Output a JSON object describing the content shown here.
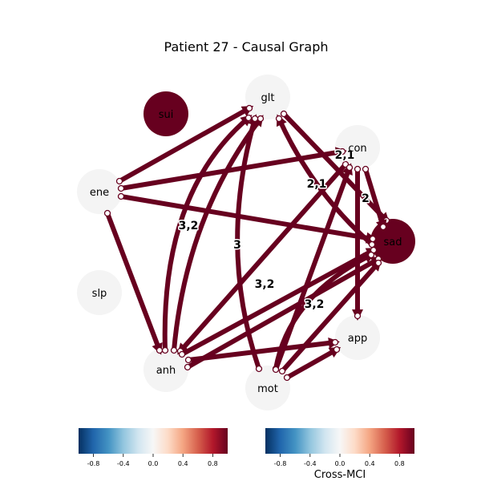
{
  "title": "Patient 27 - Causal Graph",
  "colors": {
    "edge": "#67001f",
    "node_neutral": "#f4f4f4",
    "node_strong": "#67001f",
    "marker_fill": "#ffffff"
  },
  "nodes": [
    {
      "id": "glt",
      "label": "glt",
      "value": 0.0
    },
    {
      "id": "sui",
      "label": "sui",
      "value": 1.0
    },
    {
      "id": "con",
      "label": "con",
      "value": 0.0
    },
    {
      "id": "ene",
      "label": "ene",
      "value": 0.0
    },
    {
      "id": "sad",
      "label": "sad",
      "value": 1.0
    },
    {
      "id": "slp",
      "label": "slp",
      "value": 0.0
    },
    {
      "id": "app",
      "label": "app",
      "value": 0.0
    },
    {
      "id": "anh",
      "label": "anh",
      "value": 0.0
    },
    {
      "id": "mot",
      "label": "mot",
      "value": 0.0
    }
  ],
  "edges": [
    {
      "from": "ene",
      "to": "glt",
      "label": ""
    },
    {
      "from": "ene",
      "to": "con",
      "label": ""
    },
    {
      "from": "ene",
      "to": "sad",
      "label": ""
    },
    {
      "from": "ene",
      "to": "anh",
      "label": ""
    },
    {
      "from": "anh",
      "to": "glt",
      "label": "3,2"
    },
    {
      "from": "anh",
      "to": "glt",
      "label": ""
    },
    {
      "from": "mot",
      "to": "glt",
      "label": "3"
    },
    {
      "from": "sad",
      "to": "glt",
      "label": "2,1"
    },
    {
      "from": "glt",
      "to": "sad",
      "label": ""
    },
    {
      "from": "con",
      "to": "sad",
      "label": "2"
    },
    {
      "from": "con",
      "to": "app",
      "label": ""
    },
    {
      "from": "con",
      "to": "anh",
      "label": "2,1"
    },
    {
      "from": "anh",
      "to": "sad",
      "label": "3,2"
    },
    {
      "from": "anh",
      "to": "sad",
      "label": ""
    },
    {
      "from": "anh",
      "to": "app",
      "label": ""
    },
    {
      "from": "mot",
      "to": "sad",
      "label": "3,2"
    },
    {
      "from": "mot",
      "to": "sad",
      "label": ""
    },
    {
      "from": "mot",
      "to": "con",
      "label": ""
    },
    {
      "from": "mot",
      "to": "app",
      "label": ""
    }
  ],
  "colorbars": [
    {
      "label": "",
      "range": [
        -1,
        1
      ],
      "ticks": [
        "-0.8",
        "-0.4",
        "0.0",
        "0.4",
        "0.8"
      ],
      "tick_values": [
        -0.8,
        -0.4,
        0.0,
        0.4,
        0.8
      ]
    },
    {
      "label": "Cross-MCI",
      "range": [
        -1,
        1
      ],
      "ticks": [
        "-0.8",
        "-0.4",
        "0.0",
        "0.4",
        "0.8"
      ],
      "tick_values": [
        -0.8,
        -0.4,
        0.0,
        0.4,
        0.8
      ]
    }
  ]
}
